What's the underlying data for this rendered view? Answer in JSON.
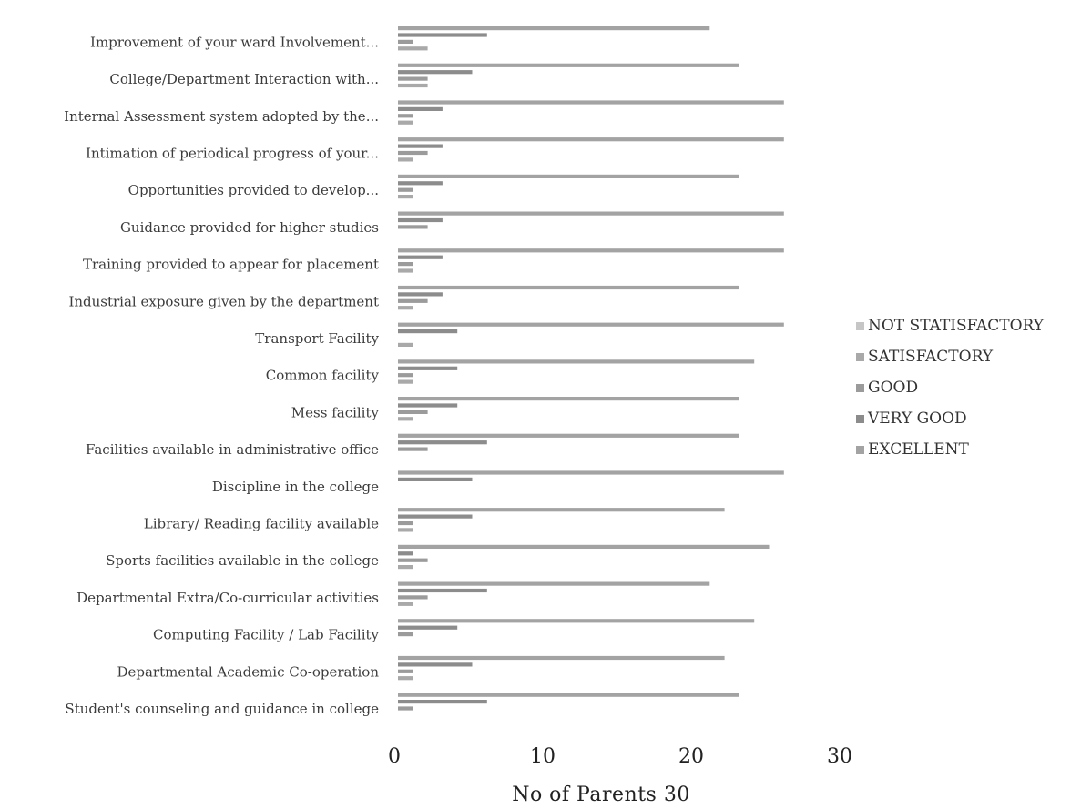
{
  "chart_data": {
    "type": "bar",
    "orientation": "horizontal",
    "stacked": false,
    "categories": [
      "Improvement of your ward Involvement...",
      "College/Department Interaction with...",
      "Internal Assessment system adopted by the...",
      "Intimation of periodical progress of your...",
      "Opportunities provided to develop...",
      "Guidance provided for higher studies",
      "Training provided to appear for placement",
      "Industrial exposure given by the department",
      "Transport Facility",
      "Common facility",
      "Mess facility",
      "Facilities available in administrative office",
      "Discipline in the college",
      "Library/ Reading facility available",
      "Sports facilities available in the college",
      "Departmental Extra/Co-curricular activities",
      "Computing Facility / Lab Facility",
      "Departmental Academic Co-operation",
      "Student's counseling and guidance in college"
    ],
    "series": [
      {
        "name": "NOT STATISFACTORY",
        "color": "#c6c6c6",
        "values": [
          0,
          0,
          0,
          0,
          0,
          0,
          0,
          0,
          0,
          0,
          0,
          0,
          0,
          0,
          0,
          0,
          0,
          0,
          0
        ]
      },
      {
        "name": "SATISFACTORY",
        "color": "#a9a9a9",
        "values": [
          2,
          2,
          1,
          1,
          1,
          0,
          1,
          1,
          1,
          1,
          1,
          0,
          0,
          1,
          1,
          1,
          0,
          1,
          0
        ]
      },
      {
        "name": "GOOD",
        "color": "#9b9b9b",
        "values": [
          1,
          2,
          1,
          2,
          1,
          2,
          1,
          2,
          0,
          1,
          2,
          2,
          0,
          1,
          2,
          2,
          1,
          1,
          1
        ]
      },
      {
        "name": "VERY GOOD",
        "color": "#8c8c8c",
        "values": [
          6,
          5,
          3,
          3,
          3,
          3,
          3,
          3,
          4,
          4,
          4,
          6,
          5,
          5,
          1,
          6,
          4,
          5,
          6
        ]
      },
      {
        "name": "EXCELLENT",
        "color": "#a3a3a3",
        "values": [
          21,
          23,
          26,
          26,
          23,
          26,
          26,
          23,
          26,
          24,
          23,
          23,
          26,
          22,
          25,
          21,
          24,
          22,
          23
        ]
      }
    ],
    "xlim": [
      0,
      30
    ],
    "x_ticks": [
      "0",
      "10",
      "20",
      "30"
    ],
    "xlabel": "No of  Parents   30",
    "legend_position": "right"
  }
}
